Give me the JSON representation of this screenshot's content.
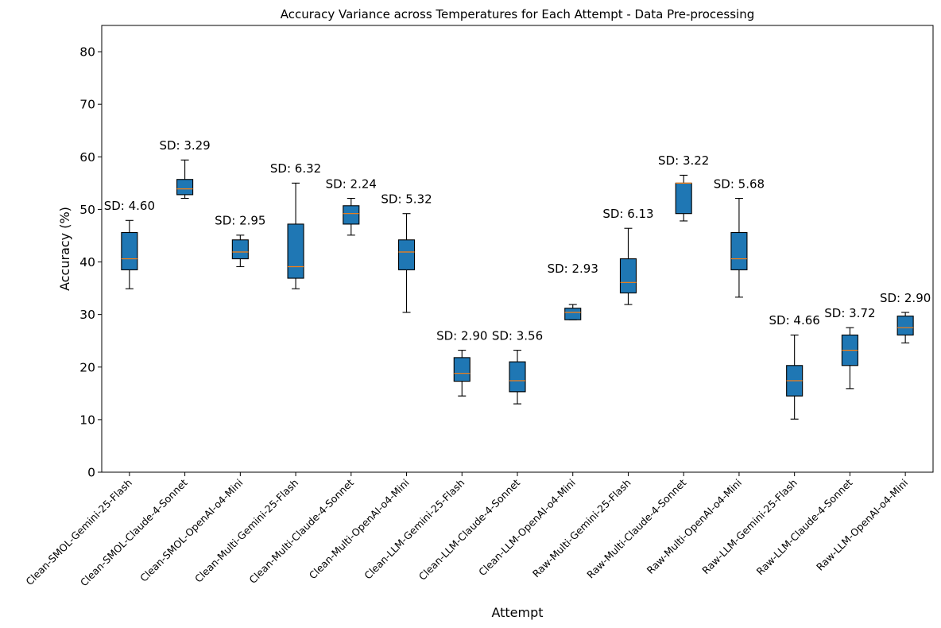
{
  "chart_data": {
    "type": "boxplot",
    "title": "Accuracy Variance across Temperatures for Each Attempt - Data Pre-processing",
    "xlabel": "Attempt",
    "ylabel": "Accuracy (%)",
    "ylim": [
      0,
      85
    ],
    "yticks": [
      0,
      10,
      20,
      30,
      40,
      50,
      60,
      70,
      80
    ],
    "grid": false,
    "box_color": "#1f77b4",
    "median_color": "#ff7f0e",
    "categories": [
      "Clean-SMOL-Gemini-25-Flash",
      "Clean-SMOL-Claude-4-Sonnet",
      "Clean-SMOL-OpenAI-o4-Mini",
      "Clean-Multi-Gemini-25-Flash",
      "Clean-Multi-Claude-4-Sonnet",
      "Clean-Multi-OpenAI-o4-Mini",
      "Clean-LLM-Gemini-25-Flash",
      "Clean-LLM-Claude-4-Sonnet",
      "Clean-LLM-OpenAI-o4-Mini",
      "Raw-Multi-Gemini-25-Flash",
      "Raw-Multi-Claude-4-Sonnet",
      "Raw-Multi-OpenAI-o4-Mini",
      "Raw-LLM-Gemini-25-Flash",
      "Raw-LLM-Claude-4-Sonnet",
      "Raw-LLM-OpenAI-o4-Mini"
    ],
    "boxes": [
      {
        "min": 34.9,
        "q1": 38.5,
        "median": 40.6,
        "q3": 45.6,
        "max": 47.9
      },
      {
        "min": 52.1,
        "q1": 52.8,
        "median": 53.9,
        "q3": 55.7,
        "max": 59.4
      },
      {
        "min": 39.1,
        "q1": 40.6,
        "median": 41.9,
        "q3": 44.2,
        "max": 45.1
      },
      {
        "min": 34.9,
        "q1": 36.9,
        "median": 39.1,
        "q3": 47.2,
        "max": 55.0
      },
      {
        "min": 45.1,
        "q1": 47.2,
        "median": 49.2,
        "q3": 50.7,
        "max": 52.1
      },
      {
        "min": 30.4,
        "q1": 38.5,
        "median": 41.9,
        "q3": 44.2,
        "max": 49.2
      },
      {
        "min": 14.5,
        "q1": 17.3,
        "median": 18.8,
        "q3": 21.8,
        "max": 23.2
      },
      {
        "min": 13.0,
        "q1": 15.3,
        "median": 17.4,
        "q3": 21.0,
        "max": 23.2
      },
      {
        "min": 29.0,
        "q1": 29.0,
        "median": 30.4,
        "q3": 31.2,
        "max": 31.9
      },
      {
        "min": 31.9,
        "q1": 34.1,
        "median": 36.1,
        "q3": 40.6,
        "max": 46.4
      },
      {
        "min": 47.8,
        "q1": 49.2,
        "median": 55.0,
        "q3": 55.0,
        "max": 56.5
      },
      {
        "min": 33.3,
        "q1": 38.5,
        "median": 40.6,
        "q3": 45.6,
        "max": 52.1
      },
      {
        "min": 10.1,
        "q1": 14.5,
        "median": 17.4,
        "q3": 20.3,
        "max": 26.1
      },
      {
        "min": 15.9,
        "q1": 20.3,
        "median": 23.2,
        "q3": 26.1,
        "max": 27.5
      },
      {
        "min": 24.6,
        "q1": 26.1,
        "median": 27.5,
        "q3": 29.7,
        "max": 30.4
      }
    ],
    "annotations": [
      {
        "text": "SD: 4.60",
        "y": 49.9
      },
      {
        "text": "SD: 3.29",
        "y": 61.4
      },
      {
        "text": "SD: 2.95",
        "y": 47.1
      },
      {
        "text": "SD: 6.32",
        "y": 57.0
      },
      {
        "text": "SD: 2.24",
        "y": 54.1
      },
      {
        "text": "SD: 5.32",
        "y": 51.2
      },
      {
        "text": "SD: 2.90",
        "y": 25.2
      },
      {
        "text": "SD: 3.56",
        "y": 25.2
      },
      {
        "text": "SD: 2.93",
        "y": 38.0
      },
      {
        "text": "SD: 6.13",
        "y": 48.4
      },
      {
        "text": "SD: 3.22",
        "y": 58.5
      },
      {
        "text": "SD: 5.68",
        "y": 54.1
      },
      {
        "text": "SD: 4.66",
        "y": 28.1
      },
      {
        "text": "SD: 3.72",
        "y": 29.5
      },
      {
        "text": "SD: 2.90",
        "y": 32.4
      }
    ]
  }
}
